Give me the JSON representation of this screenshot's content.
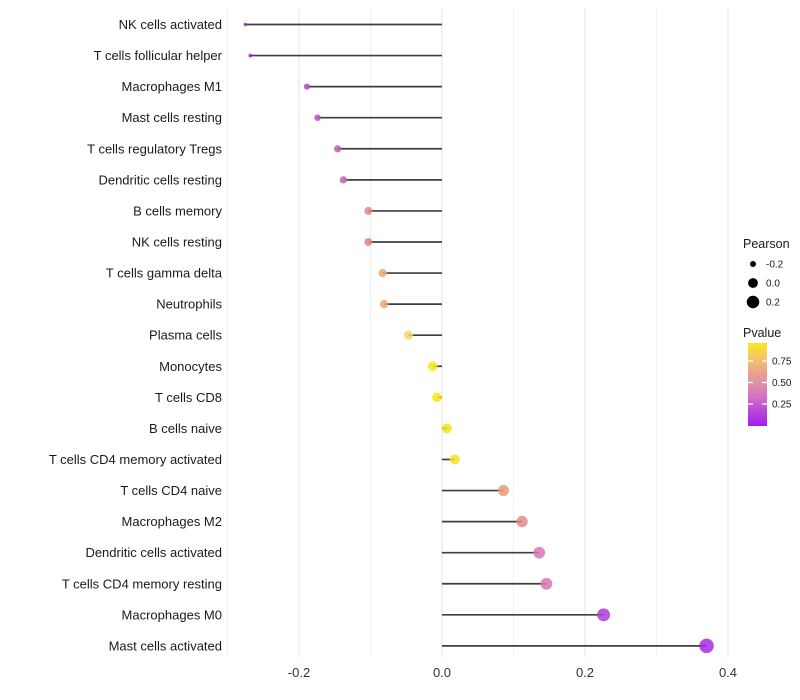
{
  "chart_data": {
    "type": "scatter",
    "subtype": "lollipop",
    "title": "",
    "xlabel": "",
    "ylabel": "",
    "xlim": [
      -0.313,
      0.413
    ],
    "x_tick_labels": [
      "-0.2",
      "0.0",
      "0.2",
      "0.4"
    ],
    "x_tick_values": [
      -0.2,
      0.0,
      0.2,
      0.4
    ],
    "grid_major": [
      -0.2,
      0.0,
      0.2,
      0.4
    ],
    "grid_minor": [
      -0.3,
      -0.1,
      0.1,
      0.3
    ],
    "grid": "vertical-only",
    "background_color": "#ffffff",
    "grid_major_color": "#e3e3e3",
    "grid_minor_color": "#f1f1f1",
    "stem_color": "#3f3f3f",
    "points": [
      {
        "category": "NK cells activated",
        "pearson": -0.275,
        "color": "#9C2BD4"
      },
      {
        "category": "T cells follicular helper",
        "pearson": -0.268,
        "color": "#9C2BD4"
      },
      {
        "category": "Macrophages M1",
        "pearson": -0.189,
        "color": "#B14BC3"
      },
      {
        "category": "Mast cells resting",
        "pearson": -0.174,
        "color": "#BB52BE"
      },
      {
        "category": "T cells regulatory  Tregs",
        "pearson": -0.146,
        "color": "#C45BAE"
      },
      {
        "category": "Dendritic cells resting",
        "pearson": -0.138,
        "color": "#C867AC"
      },
      {
        "category": "B cells memory",
        "pearson": -0.103,
        "color": "#DC8A85"
      },
      {
        "category": "NK cells resting",
        "pearson": -0.103,
        "color": "#DC8A85"
      },
      {
        "category": "T cells gamma delta",
        "pearson": -0.083,
        "color": "#ECAC73"
      },
      {
        "category": "Neutrophils",
        "pearson": -0.081,
        "color": "#ECAC73"
      },
      {
        "category": "Plasma cells",
        "pearson": -0.047,
        "color": "#F2D768"
      },
      {
        "category": "Monocytes",
        "pearson": -0.013,
        "color": "#F8E616"
      },
      {
        "category": "T cells CD8",
        "pearson": -0.007,
        "color": "#F8E616"
      },
      {
        "category": "B cells naive",
        "pearson": 0.007,
        "color": "#F6E41C"
      },
      {
        "category": "T cells CD4 memory activated",
        "pearson": 0.018,
        "color": "#F5E322"
      },
      {
        "category": "T cells CD4 naive",
        "pearson": 0.086,
        "color": "#E69B77"
      },
      {
        "category": "Macrophages M2",
        "pearson": 0.112,
        "color": "#E18D89"
      },
      {
        "category": "Dendritic cells activated",
        "pearson": 0.136,
        "color": "#D976B6"
      },
      {
        "category": "T cells CD4 memory resting",
        "pearson": 0.146,
        "color": "#D878B0"
      },
      {
        "category": "Macrophages M0",
        "pearson": 0.226,
        "color": "#AE3BDC"
      },
      {
        "category": "Mast cells activated",
        "pearson": 0.37,
        "color": "#A72BE0"
      }
    ],
    "legend": {
      "size": {
        "title": "Pearson",
        "entries": [
          {
            "label": "-0.2",
            "value": -0.2
          },
          {
            "label": "0.0",
            "value": 0.0
          },
          {
            "label": "0.2",
            "value": 0.2
          }
        ],
        "dot_color": "#000000"
      },
      "color": {
        "title": "Pvalue",
        "labels": [
          "0.75",
          "0.50",
          "0.25"
        ],
        "gradient": [
          {
            "offset": 0,
            "color": "#F9E721"
          },
          {
            "offset": 18,
            "color": "#F3C567"
          },
          {
            "offset": 36,
            "color": "#E8A28F"
          },
          {
            "offset": 50,
            "color": "#E08FA5"
          },
          {
            "offset": 64,
            "color": "#D273C4"
          },
          {
            "offset": 80,
            "color": "#BC4BD8"
          },
          {
            "offset": 100,
            "color": "#A21EF0"
          }
        ]
      }
    }
  }
}
